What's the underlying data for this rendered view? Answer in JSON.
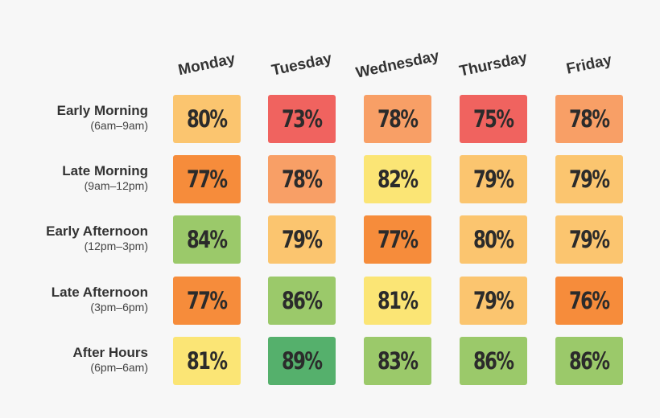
{
  "chart_data": {
    "type": "heatmap",
    "columns": [
      "Monday",
      "Tuesday",
      "Wednesday",
      "Thursday",
      "Friday"
    ],
    "rows": [
      {
        "label": "Early Morning",
        "sublabel": "(6am–9am)",
        "values": [
          80,
          73,
          78,
          75,
          78
        ],
        "display": [
          "80%",
          "73%",
          "78%",
          "75%",
          "78%"
        ]
      },
      {
        "label": "Late Morning",
        "sublabel": "(9am–12pm)",
        "values": [
          77,
          78,
          82,
          79,
          79
        ],
        "display": [
          "77%",
          "78%",
          "82%",
          "79%",
          "79%"
        ]
      },
      {
        "label": "Early Afternoon",
        "sublabel": "(12pm–3pm)",
        "values": [
          84,
          79,
          77,
          80,
          79
        ],
        "display": [
          "84%",
          "79%",
          "77%",
          "80%",
          "79%"
        ]
      },
      {
        "label": "Late Afternoon",
        "sublabel": "(3pm–6pm)",
        "values": [
          77,
          86,
          81,
          79,
          76
        ],
        "display": [
          "77%",
          "86%",
          "81%",
          "79%",
          "76%"
        ]
      },
      {
        "label": "After Hours",
        "sublabel": "(6pm–6am)",
        "values": [
          81,
          89,
          83,
          86,
          86
        ],
        "display": [
          "81%",
          "89%",
          "83%",
          "86%",
          "86%"
        ]
      }
    ],
    "unit": "%",
    "color_scale": {
      "73": "#f0635f",
      "75": "#f0635f",
      "76": "#f68c3b",
      "77": "#f68c3b",
      "78": "#f89f66",
      "79": "#fbc56f",
      "80": "#fbc56f",
      "81": "#fbe575",
      "82": "#fbe575",
      "83": "#9bc96a",
      "84": "#9bc96a",
      "86": "#9bc96a",
      "89": "#55b06c"
    }
  }
}
